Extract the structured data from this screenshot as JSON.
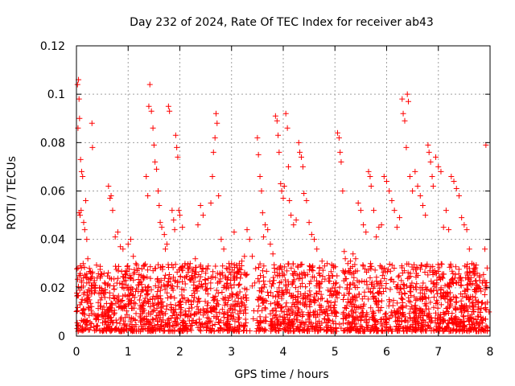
{
  "chart_data": {
    "type": "scatter",
    "title": "Day 232 of 2024, Rate Of TEC Index for receiver ab43",
    "xlabel": "GPS time / hours",
    "ylabel": "ROTI / TECUs",
    "xlim": [
      0,
      8
    ],
    "ylim": [
      0,
      0.12
    ],
    "x_ticks": [
      0,
      1,
      2,
      3,
      4,
      5,
      6,
      7,
      8
    ],
    "x_tick_labels": [
      "0",
      "1",
      "2",
      "3",
      "4",
      "5",
      "6",
      "7",
      "8"
    ],
    "y_ticks": [
      0,
      0.02,
      0.04,
      0.06,
      0.08,
      0.1,
      0.12
    ],
    "y_tick_labels": [
      "0",
      "0.02",
      "0.04",
      "0.06",
      "0.08",
      "0.1",
      "0.12"
    ],
    "grid": true,
    "marker": "+",
    "color": "#ff0000",
    "series": [
      {
        "name": "ROTI",
        "points": [
          [
            0.02,
            0.104
          ],
          [
            0.04,
            0.106
          ],
          [
            0.05,
            0.098
          ],
          [
            0.06,
            0.09
          ],
          [
            0.03,
            0.086
          ],
          [
            0.08,
            0.073
          ],
          [
            0.1,
            0.068
          ],
          [
            0.12,
            0.066
          ],
          [
            0.05,
            0.051
          ],
          [
            0.07,
            0.05
          ],
          [
            0.09,
            0.052
          ],
          [
            0.14,
            0.047
          ],
          [
            0.16,
            0.044
          ],
          [
            0.18,
            0.056
          ],
          [
            0.2,
            0.04
          ],
          [
            0.13,
            0.03
          ],
          [
            0.3,
            0.088
          ],
          [
            0.31,
            0.078
          ],
          [
            0.22,
            0.032
          ],
          [
            0.25,
            0.028
          ],
          [
            0.05,
            0.025
          ],
          [
            0.1,
            0.02
          ],
          [
            0.15,
            0.018
          ],
          [
            0.2,
            0.022
          ],
          [
            0.25,
            0.015
          ],
          [
            0.35,
            0.018
          ],
          [
            0.4,
            0.024
          ],
          [
            0.45,
            0.02
          ],
          [
            0.55,
            0.016
          ],
          [
            0.6,
            0.021
          ],
          [
            0.65,
            0.057
          ],
          [
            0.67,
            0.058
          ],
          [
            0.62,
            0.062
          ],
          [
            0.7,
            0.052
          ],
          [
            0.75,
            0.041
          ],
          [
            0.8,
            0.043
          ],
          [
            0.85,
            0.037
          ],
          [
            0.9,
            0.036
          ],
          [
            0.95,
            0.027
          ],
          [
            1.0,
            0.038
          ],
          [
            1.05,
            0.04
          ],
          [
            1.1,
            0.033
          ],
          [
            1.15,
            0.03
          ],
          [
            1.2,
            0.028
          ],
          [
            1.25,
            0.025
          ],
          [
            1.3,
            0.024
          ],
          [
            1.35,
            0.066
          ],
          [
            1.38,
            0.058
          ],
          [
            1.4,
            0.095
          ],
          [
            1.42,
            0.104
          ],
          [
            1.45,
            0.093
          ],
          [
            1.48,
            0.086
          ],
          [
            1.5,
            0.079
          ],
          [
            1.52,
            0.072
          ],
          [
            1.55,
            0.069
          ],
          [
            1.58,
            0.06
          ],
          [
            1.6,
            0.054
          ],
          [
            1.62,
            0.047
          ],
          [
            1.65,
            0.045
          ],
          [
            1.7,
            0.042
          ],
          [
            1.72,
            0.036
          ],
          [
            1.75,
            0.038
          ],
          [
            1.78,
            0.095
          ],
          [
            1.8,
            0.093
          ],
          [
            1.85,
            0.052
          ],
          [
            1.88,
            0.048
          ],
          [
            1.9,
            0.044
          ],
          [
            1.92,
            0.083
          ],
          [
            1.94,
            0.078
          ],
          [
            1.96,
            0.074
          ],
          [
            1.98,
            0.052
          ],
          [
            2.0,
            0.05
          ],
          [
            2.05,
            0.045
          ],
          [
            2.1,
            0.03
          ],
          [
            2.15,
            0.028
          ],
          [
            2.2,
            0.03
          ],
          [
            2.25,
            0.024
          ],
          [
            2.3,
            0.032
          ],
          [
            2.35,
            0.046
          ],
          [
            2.4,
            0.054
          ],
          [
            2.45,
            0.05
          ],
          [
            2.5,
            0.026
          ],
          [
            2.55,
            0.029
          ],
          [
            2.6,
            0.055
          ],
          [
            2.63,
            0.066
          ],
          [
            2.65,
            0.076
          ],
          [
            2.68,
            0.082
          ],
          [
            2.7,
            0.092
          ],
          [
            2.72,
            0.088
          ],
          [
            2.75,
            0.058
          ],
          [
            2.8,
            0.04
          ],
          [
            2.85,
            0.036
          ],
          [
            2.9,
            0.028
          ],
          [
            2.95,
            0.03
          ],
          [
            3.0,
            0.03
          ],
          [
            3.05,
            0.043
          ],
          [
            3.1,
            0.026
          ],
          [
            3.15,
            0.03
          ],
          [
            3.2,
            0.031
          ],
          [
            3.25,
            0.033
          ],
          [
            3.3,
            0.044
          ],
          [
            3.35,
            0.04
          ],
          [
            3.4,
            0.033
          ],
          [
            3.45,
            0.022
          ],
          [
            3.5,
            0.082
          ],
          [
            3.52,
            0.075
          ],
          [
            3.55,
            0.066
          ],
          [
            3.58,
            0.06
          ],
          [
            3.6,
            0.051
          ],
          [
            3.62,
            0.041
          ],
          [
            3.65,
            0.046
          ],
          [
            3.7,
            0.044
          ],
          [
            3.75,
            0.038
          ],
          [
            3.8,
            0.034
          ],
          [
            3.85,
            0.091
          ],
          [
            3.88,
            0.089
          ],
          [
            3.9,
            0.083
          ],
          [
            3.92,
            0.076
          ],
          [
            3.95,
            0.063
          ],
          [
            3.97,
            0.06
          ],
          [
            4.0,
            0.057
          ],
          [
            4.02,
            0.062
          ],
          [
            4.05,
            0.092
          ],
          [
            4.08,
            0.086
          ],
          [
            4.1,
            0.07
          ],
          [
            4.12,
            0.056
          ],
          [
            4.15,
            0.05
          ],
          [
            4.2,
            0.046
          ],
          [
            4.25,
            0.048
          ],
          [
            4.3,
            0.08
          ],
          [
            4.32,
            0.076
          ],
          [
            4.35,
            0.074
          ],
          [
            4.38,
            0.07
          ],
          [
            4.4,
            0.059
          ],
          [
            4.45,
            0.056
          ],
          [
            4.5,
            0.047
          ],
          [
            4.55,
            0.042
          ],
          [
            4.6,
            0.04
          ],
          [
            4.65,
            0.036
          ],
          [
            4.7,
            0.028
          ],
          [
            4.75,
            0.031
          ],
          [
            4.8,
            0.029
          ],
          [
            4.85,
            0.03
          ],
          [
            4.9,
            0.024
          ],
          [
            4.95,
            0.025
          ],
          [
            5.0,
            0.02
          ],
          [
            5.05,
            0.084
          ],
          [
            5.08,
            0.082
          ],
          [
            5.1,
            0.076
          ],
          [
            5.12,
            0.072
          ],
          [
            5.15,
            0.06
          ],
          [
            5.18,
            0.035
          ],
          [
            5.2,
            0.032
          ],
          [
            5.25,
            0.03
          ],
          [
            5.3,
            0.031
          ],
          [
            5.35,
            0.034
          ],
          [
            5.4,
            0.032
          ],
          [
            5.45,
            0.055
          ],
          [
            5.5,
            0.052
          ],
          [
            5.55,
            0.046
          ],
          [
            5.6,
            0.043
          ],
          [
            5.65,
            0.068
          ],
          [
            5.68,
            0.066
          ],
          [
            5.7,
            0.062
          ],
          [
            5.75,
            0.052
          ],
          [
            5.8,
            0.041
          ],
          [
            5.85,
            0.045
          ],
          [
            5.9,
            0.046
          ],
          [
            5.95,
            0.066
          ],
          [
            6.0,
            0.064
          ],
          [
            6.05,
            0.06
          ],
          [
            6.1,
            0.056
          ],
          [
            6.15,
            0.052
          ],
          [
            6.2,
            0.045
          ],
          [
            6.25,
            0.049
          ],
          [
            6.3,
            0.098
          ],
          [
            6.32,
            0.092
          ],
          [
            6.35,
            0.089
          ],
          [
            6.38,
            0.078
          ],
          [
            6.4,
            0.1
          ],
          [
            6.42,
            0.097
          ],
          [
            6.45,
            0.066
          ],
          [
            6.5,
            0.06
          ],
          [
            6.55,
            0.068
          ],
          [
            6.6,
            0.062
          ],
          [
            6.65,
            0.058
          ],
          [
            6.7,
            0.054
          ],
          [
            6.75,
            0.05
          ],
          [
            6.8,
            0.079
          ],
          [
            6.82,
            0.076
          ],
          [
            6.85,
            0.072
          ],
          [
            6.88,
            0.066
          ],
          [
            6.9,
            0.062
          ],
          [
            6.95,
            0.074
          ],
          [
            7.0,
            0.07
          ],
          [
            7.05,
            0.068
          ],
          [
            7.1,
            0.045
          ],
          [
            7.15,
            0.052
          ],
          [
            7.2,
            0.044
          ],
          [
            7.25,
            0.066
          ],
          [
            7.3,
            0.064
          ],
          [
            7.35,
            0.061
          ],
          [
            7.4,
            0.058
          ],
          [
            7.45,
            0.049
          ],
          [
            7.5,
            0.046
          ],
          [
            7.55,
            0.044
          ],
          [
            7.6,
            0.036
          ],
          [
            7.65,
            0.03
          ],
          [
            7.7,
            0.028
          ],
          [
            7.75,
            0.026
          ],
          [
            7.8,
            0.025
          ],
          [
            7.85,
            0.022
          ],
          [
            7.9,
            0.036
          ],
          [
            7.92,
            0.079
          ],
          [
            7.95,
            0.014
          ],
          [
            7.98,
            0.01
          ]
        ],
        "dense_band": {
          "description_note": "points",
          "x_range": [
            0,
            7.95
          ],
          "y_range": [
            0.002,
            0.03
          ],
          "gap_x": [
            [
              3.3,
              3.5
            ],
            [
              3.68,
              3.75
            ],
            [
              5.05,
              5.15
            ]
          ]
        }
      }
    ]
  }
}
